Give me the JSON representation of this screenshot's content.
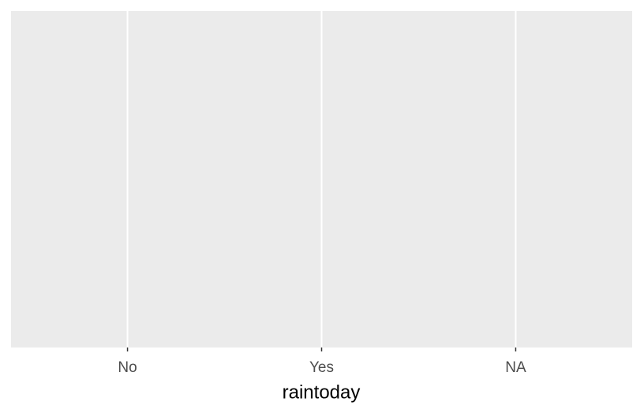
{
  "chart_data": {
    "type": "bar",
    "categories": [
      "No",
      "Yes",
      "NA"
    ],
    "x_label": "raintoday",
    "grid": true,
    "panel_color": "#ebebeb",
    "grid_color": "#ffffff"
  }
}
